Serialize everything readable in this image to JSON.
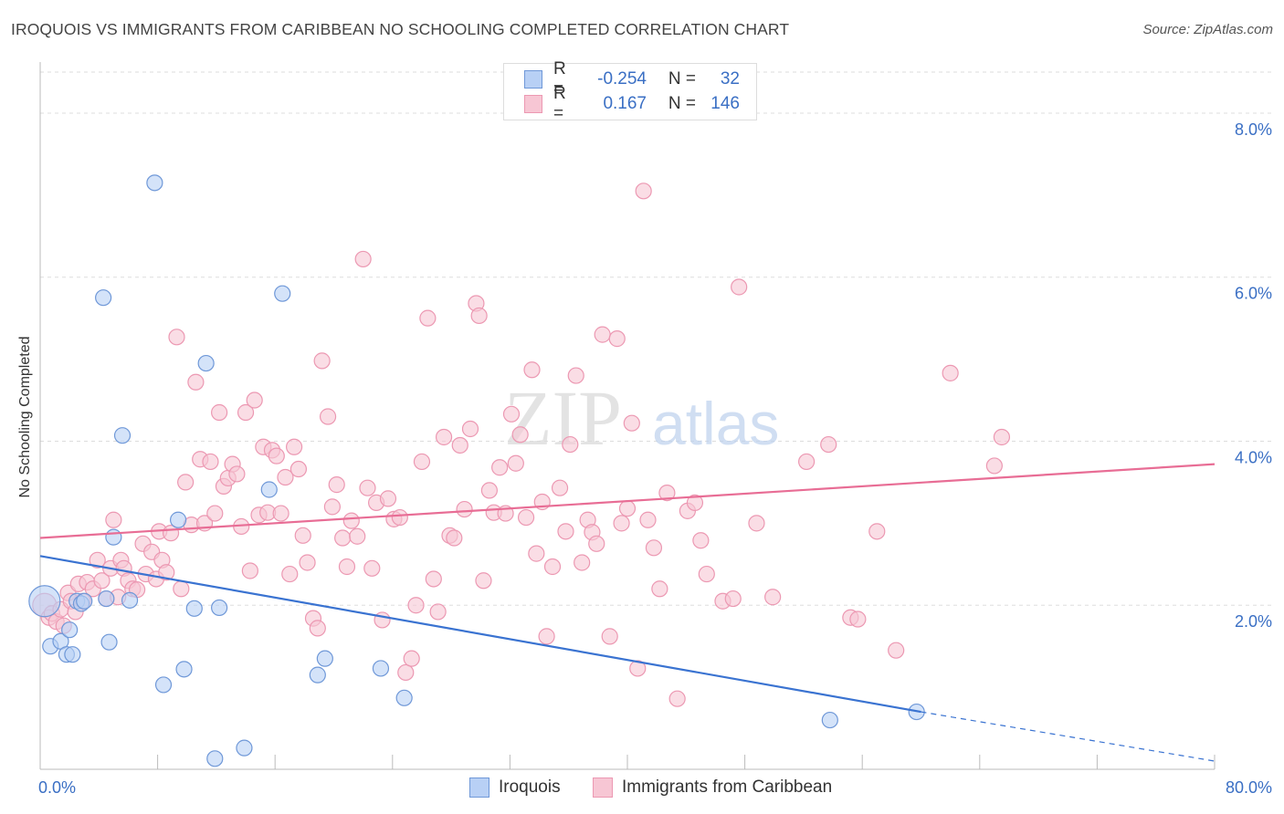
{
  "title": "IROQUOIS VS IMMIGRANTS FROM CARIBBEAN NO SCHOOLING COMPLETED CORRELATION CHART",
  "source": "Source: ZipAtlas.com",
  "legend": {
    "rows": [
      {
        "r_label": "R =",
        "r_value": "-0.254",
        "n_label": "N =",
        "n_value": "32"
      },
      {
        "r_label": "R =",
        "r_value": "0.167",
        "n_label": "N =",
        "n_value": "146"
      }
    ]
  },
  "colors": {
    "iroquois_fill": "#b8d0f5",
    "iroquois_stroke": "#6f98d8",
    "iroquois_line": "#3a73d1",
    "caribbean_fill": "#f7c6d4",
    "caribbean_stroke": "#ec98b2",
    "caribbean_line": "#e86d95",
    "grid": "#dddddd",
    "tick_label": "#3a6fc4"
  },
  "watermark": {
    "part1": "ZIP",
    "part2": "atlas"
  },
  "chart_data": {
    "type": "scatter",
    "title": "IROQUOIS VS IMMIGRANTS FROM CARIBBEAN NO SCHOOLING COMPLETED CORRELATION CHART",
    "xlabel": "",
    "ylabel": "No Schooling Completed",
    "xlim": [
      0,
      80
    ],
    "ylim": [
      0,
      8.5
    ],
    "x_tick_labels": [
      "0.0%",
      "80.0%"
    ],
    "y_ticks": [
      2,
      4,
      6,
      8
    ],
    "y_tick_labels": [
      "2.0%",
      "4.0%",
      "6.0%",
      "8.0%"
    ],
    "grid": true,
    "legend_position": "bottom",
    "series": [
      {
        "name": "Iroquois",
        "trend": {
          "x": [
            0,
            60
          ],
          "y": [
            2.6,
            0.7
          ],
          "dashed_to": [
            80,
            0.1
          ]
        },
        "points": [
          [
            0.3,
            2.05,
            24
          ],
          [
            0.7,
            1.5,
            11
          ],
          [
            1.4,
            1.56,
            11
          ],
          [
            1.8,
            1.4,
            11
          ],
          [
            2.0,
            1.7,
            11
          ],
          [
            2.2,
            1.4,
            11
          ],
          [
            2.5,
            2.05,
            11
          ],
          [
            2.8,
            2.02,
            11
          ],
          [
            4.3,
            5.75,
            11
          ],
          [
            4.5,
            2.08,
            11
          ],
          [
            4.7,
            1.55,
            11
          ],
          [
            5.6,
            4.07,
            11
          ],
          [
            6.1,
            2.06,
            11
          ],
          [
            7.8,
            7.15,
            11
          ],
          [
            8.4,
            1.03,
            11
          ],
          [
            9.4,
            3.04,
            11
          ],
          [
            9.8,
            1.22,
            11
          ],
          [
            10.5,
            1.96,
            11
          ],
          [
            11.3,
            4.95,
            11
          ],
          [
            11.9,
            0.13,
            11
          ],
          [
            12.2,
            1.97,
            11
          ],
          [
            13.9,
            0.26,
            11
          ],
          [
            15.6,
            3.41,
            11
          ],
          [
            16.5,
            5.8,
            11
          ],
          [
            18.9,
            1.15,
            11
          ],
          [
            19.4,
            1.35,
            11
          ],
          [
            23.2,
            1.23,
            11
          ],
          [
            24.8,
            0.87,
            11
          ],
          [
            53.8,
            0.6,
            11
          ],
          [
            59.7,
            0.7,
            11
          ],
          [
            5.0,
            2.83,
            11
          ],
          [
            3.0,
            2.05,
            11
          ]
        ]
      },
      {
        "name": "Immigrants from Caribbean",
        "trend": {
          "x": [
            0,
            80
          ],
          "y": [
            2.82,
            3.72
          ]
        },
        "points": [
          [
            0.3,
            2.0,
            16
          ],
          [
            0.6,
            1.85,
            11
          ],
          [
            0.8,
            1.9,
            11
          ],
          [
            1.1,
            1.8,
            11
          ],
          [
            1.4,
            1.95,
            11
          ],
          [
            1.6,
            1.75,
            11
          ],
          [
            1.9,
            2.15,
            11
          ],
          [
            2.1,
            2.05,
            11
          ],
          [
            2.4,
            1.92,
            11
          ],
          [
            2.6,
            2.26,
            11
          ],
          [
            2.9,
            2.05,
            11
          ],
          [
            3.2,
            2.28,
            11
          ],
          [
            3.6,
            2.2,
            11
          ],
          [
            3.9,
            2.55,
            11
          ],
          [
            4.2,
            2.3,
            11
          ],
          [
            4.5,
            2.08,
            11
          ],
          [
            4.8,
            2.45,
            11
          ],
          [
            5.0,
            3.04,
            11
          ],
          [
            5.3,
            2.1,
            11
          ],
          [
            5.5,
            2.55,
            11
          ],
          [
            5.7,
            2.45,
            11
          ],
          [
            6.0,
            2.3,
            11
          ],
          [
            6.3,
            2.2,
            11
          ],
          [
            6.6,
            2.19,
            11
          ],
          [
            7.0,
            2.75,
            11
          ],
          [
            7.2,
            2.38,
            11
          ],
          [
            7.6,
            2.65,
            11
          ],
          [
            7.9,
            2.32,
            11
          ],
          [
            8.1,
            2.9,
            11
          ],
          [
            8.3,
            2.55,
            11
          ],
          [
            8.6,
            2.4,
            11
          ],
          [
            8.9,
            2.88,
            11
          ],
          [
            9.3,
            5.27,
            11
          ],
          [
            9.6,
            2.2,
            11
          ],
          [
            9.9,
            3.5,
            11
          ],
          [
            10.3,
            2.98,
            11
          ],
          [
            10.6,
            4.72,
            11
          ],
          [
            10.9,
            3.78,
            11
          ],
          [
            11.2,
            3.0,
            11
          ],
          [
            11.6,
            3.75,
            11
          ],
          [
            11.9,
            3.12,
            11
          ],
          [
            12.2,
            4.35,
            11
          ],
          [
            12.5,
            3.45,
            11
          ],
          [
            12.8,
            3.55,
            11
          ],
          [
            13.1,
            3.72,
            11
          ],
          [
            13.4,
            3.6,
            11
          ],
          [
            13.7,
            2.96,
            11
          ],
          [
            14.0,
            4.35,
            11
          ],
          [
            14.3,
            2.42,
            11
          ],
          [
            14.6,
            4.5,
            11
          ],
          [
            14.9,
            3.1,
            11
          ],
          [
            15.2,
            3.93,
            11
          ],
          [
            15.5,
            3.13,
            11
          ],
          [
            15.8,
            3.89,
            11
          ],
          [
            16.1,
            3.82,
            11
          ],
          [
            16.4,
            3.12,
            11
          ],
          [
            16.7,
            3.56,
            11
          ],
          [
            17.0,
            2.38,
            11
          ],
          [
            17.3,
            3.93,
            11
          ],
          [
            17.6,
            3.66,
            11
          ],
          [
            17.9,
            2.85,
            11
          ],
          [
            18.2,
            2.52,
            11
          ],
          [
            18.6,
            1.84,
            11
          ],
          [
            18.9,
            1.72,
            11
          ],
          [
            19.2,
            4.98,
            11
          ],
          [
            19.6,
            4.3,
            11
          ],
          [
            19.9,
            3.2,
            11
          ],
          [
            20.2,
            3.47,
            11
          ],
          [
            20.6,
            2.82,
            11
          ],
          [
            20.9,
            2.47,
            11
          ],
          [
            21.2,
            3.03,
            11
          ],
          [
            21.6,
            2.84,
            11
          ],
          [
            22.0,
            6.22,
            11
          ],
          [
            22.3,
            3.43,
            11
          ],
          [
            22.6,
            2.45,
            11
          ],
          [
            22.9,
            3.25,
            11
          ],
          [
            23.3,
            1.82,
            11
          ],
          [
            23.7,
            3.3,
            11
          ],
          [
            24.1,
            3.05,
            11
          ],
          [
            24.5,
            3.07,
            11
          ],
          [
            24.9,
            1.18,
            11
          ],
          [
            25.3,
            1.35,
            11
          ],
          [
            25.6,
            2.0,
            11
          ],
          [
            26.0,
            3.75,
            11
          ],
          [
            26.4,
            5.5,
            11
          ],
          [
            26.8,
            2.32,
            11
          ],
          [
            27.1,
            1.92,
            11
          ],
          [
            27.5,
            4.05,
            11
          ],
          [
            27.9,
            2.85,
            11
          ],
          [
            28.2,
            2.82,
            11
          ],
          [
            28.6,
            3.95,
            11
          ],
          [
            28.9,
            3.17,
            11
          ],
          [
            29.3,
            4.15,
            11
          ],
          [
            29.7,
            5.68,
            11
          ],
          [
            29.9,
            5.53,
            11
          ],
          [
            30.2,
            2.3,
            11
          ],
          [
            30.6,
            3.4,
            11
          ],
          [
            30.9,
            3.13,
            11
          ],
          [
            31.3,
            3.68,
            11
          ],
          [
            31.7,
            3.12,
            11
          ],
          [
            32.1,
            4.33,
            11
          ],
          [
            32.4,
            3.73,
            11
          ],
          [
            32.7,
            4.08,
            11
          ],
          [
            33.1,
            3.07,
            11
          ],
          [
            33.5,
            4.87,
            11
          ],
          [
            33.8,
            2.63,
            11
          ],
          [
            34.2,
            3.26,
            11
          ],
          [
            34.5,
            1.62,
            11
          ],
          [
            34.9,
            2.47,
            11
          ],
          [
            35.4,
            3.43,
            11
          ],
          [
            35.8,
            2.9,
            11
          ],
          [
            36.1,
            3.96,
            11
          ],
          [
            36.5,
            4.8,
            11
          ],
          [
            36.9,
            2.52,
            11
          ],
          [
            37.3,
            3.04,
            11
          ],
          [
            37.6,
            2.89,
            11
          ],
          [
            37.9,
            2.75,
            11
          ],
          [
            38.3,
            5.3,
            11
          ],
          [
            38.8,
            1.62,
            11
          ],
          [
            39.3,
            5.25,
            11
          ],
          [
            39.6,
            3.0,
            11
          ],
          [
            40.0,
            3.18,
            11
          ],
          [
            40.3,
            4.22,
            11
          ],
          [
            40.7,
            1.23,
            11
          ],
          [
            41.1,
            7.05,
            11
          ],
          [
            41.4,
            3.04,
            11
          ],
          [
            41.8,
            2.7,
            11
          ],
          [
            42.2,
            2.2,
            11
          ],
          [
            42.7,
            3.37,
            11
          ],
          [
            43.4,
            0.86,
            11
          ],
          [
            44.1,
            3.15,
            11
          ],
          [
            44.6,
            3.25,
            11
          ],
          [
            45.0,
            2.79,
            11
          ],
          [
            45.4,
            2.38,
            11
          ],
          [
            46.5,
            2.05,
            11
          ],
          [
            47.2,
            2.08,
            11
          ],
          [
            47.6,
            5.88,
            11
          ],
          [
            48.8,
            3.0,
            11
          ],
          [
            49.9,
            2.1,
            11
          ],
          [
            52.2,
            3.75,
            11
          ],
          [
            53.7,
            3.96,
            11
          ],
          [
            55.2,
            1.85,
            11
          ],
          [
            55.7,
            1.83,
            11
          ],
          [
            57.0,
            2.9,
            11
          ],
          [
            58.3,
            1.45,
            11
          ],
          [
            62.0,
            4.83,
            11
          ],
          [
            65.0,
            3.7,
            11
          ],
          [
            65.5,
            4.05,
            11
          ]
        ]
      }
    ]
  },
  "bottom_legend": [
    {
      "label": "Iroquois"
    },
    {
      "label": "Immigrants from Caribbean"
    }
  ]
}
